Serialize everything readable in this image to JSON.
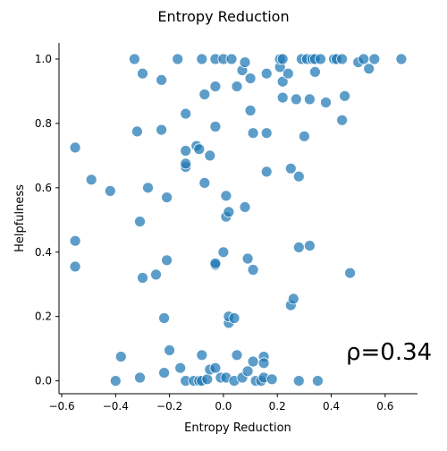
{
  "chart_data": {
    "type": "scatter",
    "title": "Entropy Reduction",
    "xlabel": "Entropy Reduction",
    "ylabel": "Helpfulness",
    "xlim": [
      -0.61,
      0.72
    ],
    "ylim": [
      -0.04,
      1.05
    ],
    "xticks": [
      -0.6,
      -0.4,
      -0.2,
      0.0,
      0.2,
      0.4,
      0.6
    ],
    "xtick_labels": [
      "−0.6",
      "−0.4",
      "−0.2",
      "0.0",
      "0.2",
      "0.4",
      "0.6"
    ],
    "yticks": [
      0.0,
      0.2,
      0.4,
      0.6,
      0.8,
      1.0
    ],
    "ytick_labels": [
      "0.0",
      "0.2",
      "0.4",
      "0.6",
      "0.8",
      "1.0"
    ],
    "grid": false,
    "marker_color": "#1f77b4",
    "annotation": "ρ=0.34",
    "points": [
      [
        -0.33,
        1.0
      ],
      [
        -0.3,
        0.955
      ],
      [
        -0.17,
        1.0
      ],
      [
        -0.08,
        1.0
      ],
      [
        -0.03,
        1.0
      ],
      [
        0.0,
        1.0
      ],
      [
        0.03,
        1.0
      ],
      [
        0.07,
        0.965
      ],
      [
        0.08,
        0.99
      ],
      [
        0.1,
        0.94
      ],
      [
        0.16,
        0.955
      ],
      [
        0.21,
        0.975
      ],
      [
        0.21,
        1.0
      ],
      [
        0.22,
        1.0
      ],
      [
        0.22,
        0.93
      ],
      [
        0.24,
        0.955
      ],
      [
        0.29,
        1.0
      ],
      [
        0.31,
        1.0
      ],
      [
        0.33,
        1.0
      ],
      [
        0.34,
        1.0
      ],
      [
        0.34,
        0.96
      ],
      [
        0.36,
        1.0
      ],
      [
        0.41,
        1.0
      ],
      [
        0.42,
        1.0
      ],
      [
        0.44,
        1.0
      ],
      [
        0.5,
        0.99
      ],
      [
        0.52,
        1.0
      ],
      [
        0.54,
        0.97
      ],
      [
        0.56,
        1.0
      ],
      [
        0.66,
        1.0
      ],
      [
        -0.23,
        0.935
      ],
      [
        -0.07,
        0.89
      ],
      [
        -0.03,
        0.915
      ],
      [
        0.05,
        0.915
      ],
      [
        0.22,
        0.88
      ],
      [
        0.27,
        0.875
      ],
      [
        0.32,
        0.875
      ],
      [
        0.38,
        0.865
      ],
      [
        0.45,
        0.885
      ],
      [
        -0.14,
        0.83
      ],
      [
        0.1,
        0.84
      ],
      [
        -0.32,
        0.775
      ],
      [
        -0.23,
        0.78
      ],
      [
        -0.03,
        0.79
      ],
      [
        0.11,
        0.77
      ],
      [
        0.16,
        0.77
      ],
      [
        0.3,
        0.76
      ],
      [
        0.44,
        0.81
      ],
      [
        -0.55,
        0.725
      ],
      [
        -0.14,
        0.715
      ],
      [
        -0.1,
        0.73
      ],
      [
        -0.09,
        0.72
      ],
      [
        -0.05,
        0.7
      ],
      [
        -0.14,
        0.665
      ],
      [
        -0.14,
        0.675
      ],
      [
        0.16,
        0.65
      ],
      [
        0.25,
        0.66
      ],
      [
        -0.49,
        0.625
      ],
      [
        -0.07,
        0.615
      ],
      [
        0.28,
        0.635
      ],
      [
        -0.42,
        0.59
      ],
      [
        -0.28,
        0.6
      ],
      [
        -0.21,
        0.57
      ],
      [
        0.01,
        0.575
      ],
      [
        0.08,
        0.54
      ],
      [
        0.01,
        0.51
      ],
      [
        0.02,
        0.525
      ],
      [
        -0.31,
        0.495
      ],
      [
        -0.55,
        0.435
      ],
      [
        0.0,
        0.4
      ],
      [
        0.28,
        0.415
      ],
      [
        0.32,
        0.42
      ],
      [
        -0.55,
        0.355
      ],
      [
        -0.21,
        0.375
      ],
      [
        -0.03,
        0.36
      ],
      [
        -0.03,
        0.365
      ],
      [
        0.09,
        0.38
      ],
      [
        0.11,
        0.345
      ],
      [
        0.47,
        0.335
      ],
      [
        -0.3,
        0.32
      ],
      [
        -0.25,
        0.33
      ],
      [
        0.25,
        0.235
      ],
      [
        0.26,
        0.255
      ],
      [
        -0.22,
        0.195
      ],
      [
        0.02,
        0.18
      ],
      [
        0.02,
        0.2
      ],
      [
        0.04,
        0.195
      ],
      [
        -0.38,
        0.075
      ],
      [
        -0.2,
        0.095
      ],
      [
        -0.08,
        0.08
      ],
      [
        0.05,
        0.08
      ],
      [
        0.11,
        0.06
      ],
      [
        0.15,
        0.075
      ],
      [
        0.15,
        0.055
      ],
      [
        -0.4,
        0.0
      ],
      [
        -0.31,
        0.01
      ],
      [
        -0.22,
        0.025
      ],
      [
        -0.16,
        0.04
      ],
      [
        -0.14,
        0.0
      ],
      [
        -0.11,
        0.0
      ],
      [
        -0.09,
        0.0
      ],
      [
        -0.08,
        0.0
      ],
      [
        -0.06,
        0.005
      ],
      [
        -0.05,
        0.035
      ],
      [
        -0.03,
        0.04
      ],
      [
        -0.01,
        0.01
      ],
      [
        0.01,
        0.01
      ],
      [
        0.04,
        0.0
      ],
      [
        0.07,
        0.01
      ],
      [
        0.09,
        0.03
      ],
      [
        0.12,
        0.0
      ],
      [
        0.14,
        0.0
      ],
      [
        0.15,
        0.01
      ],
      [
        0.18,
        0.005
      ],
      [
        0.28,
        0.0
      ],
      [
        0.35,
        0.0
      ]
    ]
  }
}
